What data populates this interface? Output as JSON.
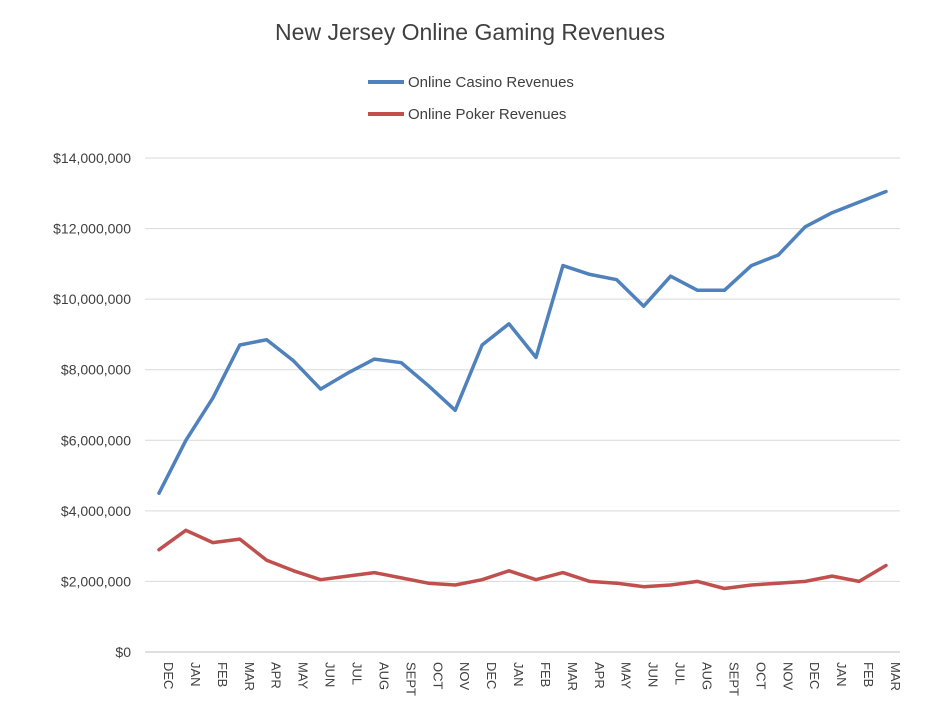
{
  "chart_data": {
    "type": "line",
    "title": "New Jersey Online Gaming Revenues",
    "categories": [
      "DEC",
      "JAN",
      "FEB",
      "MAR",
      "APR",
      "MAY",
      "JUN",
      "JUL",
      "AUG",
      "SEPT",
      "OCT",
      "NOV",
      "DEC",
      "JAN",
      "FEB",
      "MAR",
      "APR",
      "MAY",
      "JUN",
      "JUL",
      "AUG",
      "SEPT",
      "OCT",
      "NOV",
      "DEC",
      "JAN",
      "FEB",
      "MAR"
    ],
    "series": [
      {
        "name": "Online Casino Revenues",
        "color": "#4f81bd",
        "values": [
          4500000,
          6000000,
          7200000,
          8700000,
          8850000,
          8250000,
          7450000,
          7900000,
          8300000,
          8200000,
          7550000,
          6850000,
          8700000,
          9300000,
          8350000,
          10950000,
          10700000,
          10550000,
          9800000,
          10650000,
          10250000,
          10250000,
          10950000,
          11250000,
          12050000,
          12450000,
          12750000,
          13050000
        ]
      },
      {
        "name": "Online Poker Revenues",
        "color": "#c0504d",
        "values": [
          2900000,
          3450000,
          3100000,
          3200000,
          2600000,
          2300000,
          2050000,
          2150000,
          2250000,
          2100000,
          1950000,
          1900000,
          2050000,
          2300000,
          2050000,
          2250000,
          2000000,
          1950000,
          1850000,
          1900000,
          2000000,
          1800000,
          1900000,
          1950000,
          2000000,
          2150000,
          2000000,
          2450000
        ]
      }
    ],
    "y_ticks": [
      "$0",
      "$2,000,000",
      "$4,000,000",
      "$6,000,000",
      "$8,000,000",
      "$10,000,000",
      "$12,000,000",
      "$14,000,000"
    ],
    "ylim": [
      0,
      14000000
    ],
    "ytick_step": 2000000,
    "grid": true,
    "legend_position": "top"
  }
}
